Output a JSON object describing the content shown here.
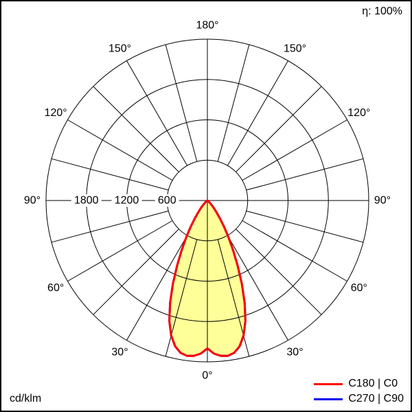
{
  "chart_data": {
    "type": "polar-line",
    "eta_label": "η: 100%",
    "unit_label": "cd/klm",
    "r_axis": {
      "min": 0,
      "max": 2400,
      "ticks": [
        600,
        1200,
        1800
      ]
    },
    "angle_grid_step_deg": 15,
    "angle_label_step_deg": 30,
    "angle_labels": [
      {
        "deg": 0,
        "text": "0°"
      },
      {
        "deg": 30,
        "text": "30°"
      },
      {
        "deg": 60,
        "text": "60°"
      },
      {
        "deg": 90,
        "text": "90°"
      },
      {
        "deg": 120,
        "text": "120°"
      },
      {
        "deg": 150,
        "text": "150°"
      },
      {
        "deg": 180,
        "text": "180°"
      }
    ],
    "legend": [
      {
        "label": "C180 | C0",
        "color": "#ff0000"
      },
      {
        "label": "C270 | C90",
        "color": "#0000ee"
      }
    ],
    "series": [
      {
        "name": "C180 | C0",
        "color": "#ff0000",
        "fill": "#ffff99",
        "points": [
          [
            0,
            2200
          ],
          [
            2.5,
            2280
          ],
          [
            5,
            2320
          ],
          [
            7.5,
            2330
          ],
          [
            10,
            2300
          ],
          [
            12.5,
            2220
          ],
          [
            15,
            2080
          ],
          [
            17.5,
            1880
          ],
          [
            20,
            1620
          ],
          [
            22.5,
            1340
          ],
          [
            25,
            1060
          ],
          [
            27.5,
            820
          ],
          [
            30,
            620
          ],
          [
            32.5,
            460
          ],
          [
            35,
            330
          ],
          [
            37.5,
            230
          ],
          [
            40,
            160
          ],
          [
            42.5,
            110
          ],
          [
            45,
            70
          ],
          [
            47.5,
            45
          ],
          [
            50,
            30
          ],
          [
            52.5,
            20
          ],
          [
            55,
            12
          ],
          [
            57.5,
            8
          ],
          [
            60,
            5
          ],
          [
            65,
            2
          ],
          [
            70,
            1
          ],
          [
            75,
            0
          ],
          [
            80,
            0
          ],
          [
            85,
            0
          ],
          [
            90,
            0
          ]
        ]
      },
      {
        "name": "C270 | C90",
        "color": "#0000ee",
        "fill": null,
        "points": [
          [
            0,
            2200
          ],
          [
            2.5,
            2280
          ],
          [
            5,
            2320
          ],
          [
            7.5,
            2330
          ],
          [
            10,
            2300
          ],
          [
            12.5,
            2220
          ],
          [
            15,
            2080
          ],
          [
            17.5,
            1880
          ],
          [
            20,
            1620
          ],
          [
            22.5,
            1340
          ],
          [
            25,
            1060
          ],
          [
            27.5,
            820
          ],
          [
            30,
            620
          ],
          [
            32.5,
            460
          ],
          [
            35,
            330
          ],
          [
            37.5,
            230
          ],
          [
            40,
            160
          ],
          [
            42.5,
            110
          ],
          [
            45,
            70
          ],
          [
            47.5,
            45
          ],
          [
            50,
            30
          ],
          [
            52.5,
            20
          ],
          [
            55,
            12
          ],
          [
            57.5,
            8
          ],
          [
            60,
            5
          ],
          [
            65,
            2
          ],
          [
            70,
            1
          ],
          [
            75,
            0
          ],
          [
            80,
            0
          ],
          [
            85,
            0
          ],
          [
            90,
            0
          ]
        ]
      }
    ]
  }
}
